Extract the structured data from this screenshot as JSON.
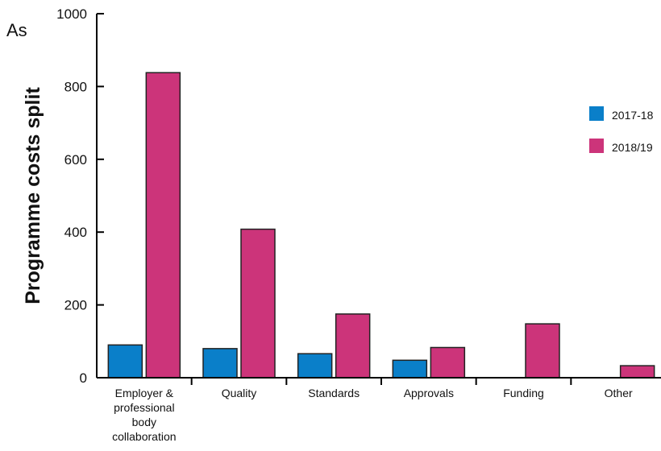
{
  "chart_data": {
    "type": "bar",
    "corner_label": "As",
    "ylabel": "Programme costs split",
    "xlabel": "",
    "ylim": [
      0,
      1000
    ],
    "yticks": [
      0,
      200,
      400,
      600,
      800,
      1000
    ],
    "categories": [
      [
        "Employer &",
        "professional",
        "body",
        "collaboration"
      ],
      [
        "Quality"
      ],
      [
        "Standards"
      ],
      [
        "Approvals"
      ],
      [
        "Funding"
      ],
      [
        "Other"
      ]
    ],
    "series": [
      {
        "name": "2017-18",
        "color": "#0a7fc9",
        "values": [
          90,
          80,
          66,
          48,
          0,
          0
        ]
      },
      {
        "name": "2018/19",
        "color": "#cc347a",
        "values": [
          838,
          408,
          175,
          83,
          148,
          33
        ]
      }
    ],
    "legend": "right",
    "grid": false
  }
}
